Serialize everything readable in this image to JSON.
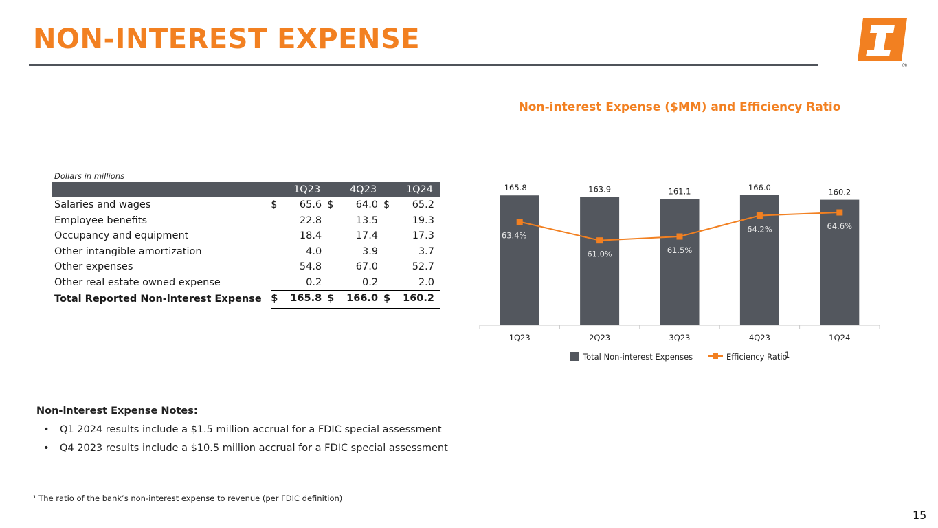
{
  "title": "NON-INTEREST EXPENSE",
  "brand_color": "#F28021",
  "logo": {
    "registered_mark": "®"
  },
  "table": {
    "units_note": "Dollars in millions",
    "headers": [
      "1Q23",
      "4Q23",
      "1Q24"
    ],
    "rows": [
      {
        "label": "Salaries and wages",
        "currency": "$",
        "values": [
          "65.6",
          "64.0",
          "65.2"
        ]
      },
      {
        "label": "Employee benefits",
        "currency": "",
        "values": [
          "22.8",
          "13.5",
          "19.3"
        ]
      },
      {
        "label": "Occupancy and equipment",
        "currency": "",
        "values": [
          "18.4",
          "17.4",
          "17.3"
        ]
      },
      {
        "label": "Other intangible amortization",
        "currency": "",
        "values": [
          "4.0",
          "3.9",
          "3.7"
        ]
      },
      {
        "label": "Other expenses",
        "currency": "",
        "values": [
          "54.8",
          "67.0",
          "52.7"
        ]
      },
      {
        "label": "Other real estate owned expense",
        "currency": "",
        "values": [
          "0.2",
          "0.2",
          "2.0"
        ]
      }
    ],
    "total": {
      "label": "Total Reported Non-interest Expense",
      "currency": "$",
      "values": [
        "165.8",
        "166.0",
        "160.2"
      ]
    }
  },
  "chart_data": {
    "type": "bar",
    "title": "Non-interest Expense ($MM) and Efficiency Ratio",
    "categories": [
      "1Q23",
      "2Q23",
      "3Q23",
      "4Q23",
      "1Q24"
    ],
    "series": [
      {
        "name": "Total Non-interest Expenses",
        "kind": "bar",
        "color": "#53575e",
        "values": [
          165.8,
          163.9,
          161.1,
          166.0,
          160.2
        ],
        "labels": [
          "165.8",
          "163.9",
          "161.1",
          "166.0",
          "160.2"
        ]
      },
      {
        "name": "Efficiency Ratio",
        "kind": "line",
        "color": "#F28021",
        "values": [
          63.4,
          61.0,
          61.5,
          64.2,
          64.6
        ],
        "labels": [
          "63.4%",
          "61.0%",
          "61.5%",
          "64.2%",
          "64.6%"
        ]
      }
    ],
    "legend_footnote_marker": "1",
    "legend_position": "bottom-center"
  },
  "notes": {
    "heading": "Non-interest Expense Notes:",
    "items": [
      "Q1 2024 results include a $1.5 million accrual for a FDIC special assessment",
      "Q4 2023 results include a $10.5 million accrual for a FDIC special assessment"
    ]
  },
  "footnote": "¹ The ratio of the bank’s non-interest expense to revenue (per FDIC definition)",
  "page_number": "15"
}
